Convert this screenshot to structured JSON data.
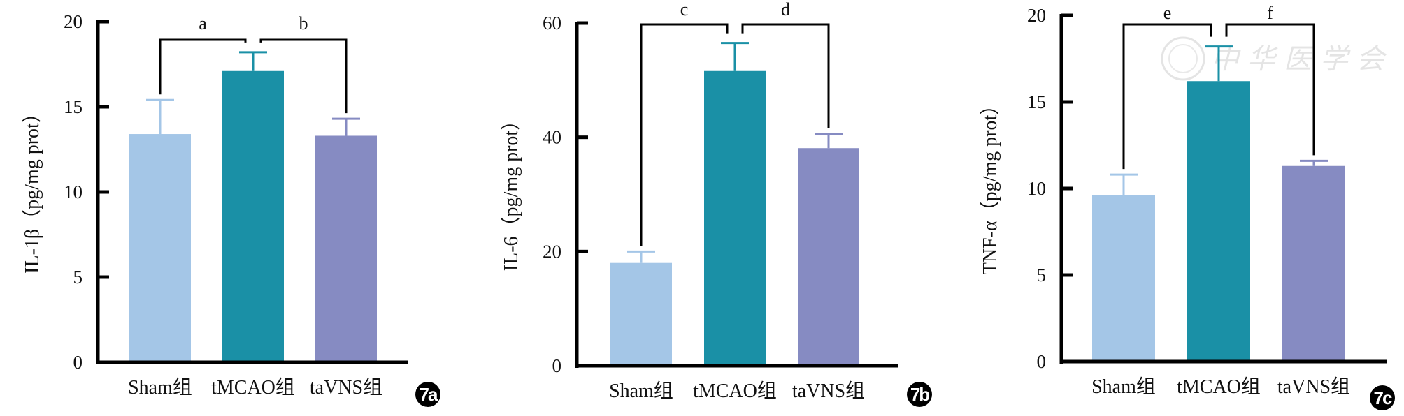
{
  "chart_data": [
    {
      "panel": "7a",
      "type": "bar",
      "title": "",
      "xlabel": "",
      "ylabel": "IL-1β（pg/mg prot）",
      "categories": [
        "Sham组",
        "tMCAO组",
        "taVNS组"
      ],
      "values": [
        13.4,
        17.1,
        13.3
      ],
      "error": [
        2.0,
        1.1,
        1.0
      ],
      "ylim": [
        0,
        20
      ],
      "yticks": [
        0,
        5,
        10,
        15,
        20
      ],
      "colors": [
        "#a4c6e7",
        "#1a90a6",
        "#868bc2"
      ],
      "grid": false,
      "significance": [
        {
          "label": "a",
          "from": 0,
          "to": 1
        },
        {
          "label": "b",
          "from": 1,
          "to": 2
        }
      ],
      "badge": "7a"
    },
    {
      "panel": "7b",
      "type": "bar",
      "title": "",
      "xlabel": "",
      "ylabel": "IL-6（pg/mg prot）",
      "categories": [
        "Sham组",
        "tMCAO组",
        "taVNS组"
      ],
      "values": [
        18.0,
        51.6,
        38.1
      ],
      "error": [
        2.0,
        4.9,
        2.5
      ],
      "ylim": [
        0,
        60
      ],
      "yticks": [
        0,
        20,
        40,
        60
      ],
      "colors": [
        "#a4c6e7",
        "#1a90a6",
        "#868bc2"
      ],
      "grid": false,
      "significance": [
        {
          "label": "c",
          "from": 0,
          "to": 1
        },
        {
          "label": "d",
          "from": 1,
          "to": 2
        }
      ],
      "badge": "7b"
    },
    {
      "panel": "7c",
      "type": "bar",
      "title": "",
      "xlabel": "",
      "ylabel": "TNF-α（pg/mg prot）",
      "categories": [
        "Sham组",
        "tMCAO组",
        "taVNS组"
      ],
      "values": [
        9.6,
        16.2,
        11.3
      ],
      "error": [
        1.2,
        2.0,
        0.3
      ],
      "ylim": [
        0,
        20
      ],
      "yticks": [
        0,
        5,
        10,
        15,
        20
      ],
      "colors": [
        "#a4c6e7",
        "#1a90a6",
        "#868bc2"
      ],
      "grid": false,
      "significance": [
        {
          "label": "e",
          "from": 0,
          "to": 1
        },
        {
          "label": "f",
          "from": 1,
          "to": 2
        }
      ],
      "badge": "7c",
      "watermark": "中华医学会"
    }
  ]
}
